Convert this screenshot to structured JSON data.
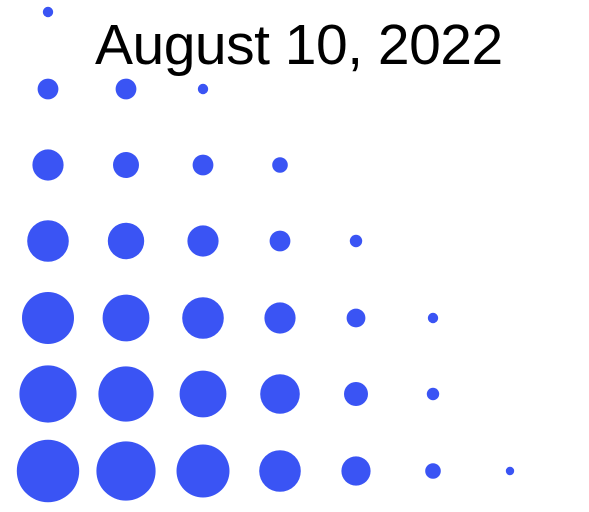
{
  "title": {
    "text": "August 10, 2022"
  },
  "dots": {
    "color": "#3a54f4",
    "size_levels": [
      [
        1
      ],
      [
        2,
        2,
        1
      ],
      [
        3,
        2.5,
        2,
        1.5
      ],
      [
        4,
        3.5,
        3,
        2,
        1.2
      ],
      [
        5,
        4.5,
        4,
        3,
        1.8,
        1
      ],
      [
        5.5,
        5.3,
        4.5,
        3.8,
        2.3,
        1.2
      ],
      [
        6,
        5.7,
        5.1,
        4,
        2.8,
        1.5,
        0.8
      ]
    ]
  }
}
